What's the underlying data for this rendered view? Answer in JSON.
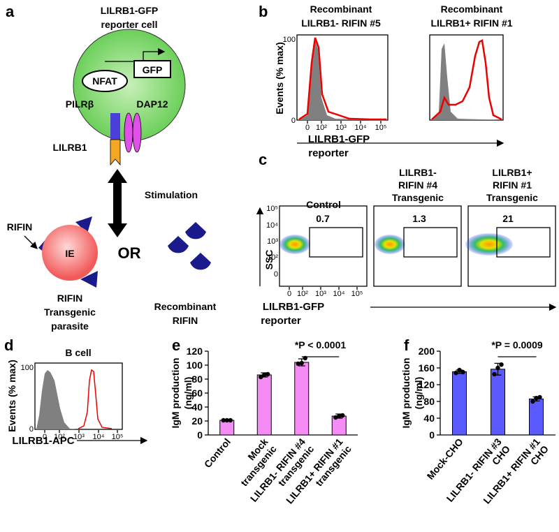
{
  "panel_a": {
    "label": "a",
    "title_lines": [
      "LILRB1-GFP",
      "reporter cell"
    ],
    "gfp": "GFP",
    "nfat": "NFAT",
    "pilrb": "PILRβ",
    "dap12": "DAP12",
    "lilrb1": "LILRB1",
    "stimulation": "Stimulation",
    "rifin": "RIFIN",
    "ie": "IE",
    "or": "OR",
    "transgenic_lines": [
      "RIFIN",
      "Transgenic",
      "parasite"
    ],
    "recombinant_lines": [
      "Recombinant",
      "RIFIN"
    ]
  },
  "panel_b": {
    "label": "b",
    "plots": [
      {
        "title_lines": [
          "Recombinant",
          "LILRB1- RIFIN #5"
        ]
      },
      {
        "title_lines": [
          "Recombinant",
          "LILRB1+ RIFIN #1"
        ]
      }
    ],
    "ylabel": "Events (% max)",
    "yticks": [
      100,
      0
    ],
    "xticks": [
      0,
      "10²",
      "10³",
      "10⁴",
      "10⁵"
    ],
    "xlabel_lines": [
      "LILRB1-GFP",
      "reporter"
    ]
  },
  "panel_c": {
    "label": "c",
    "plots": [
      {
        "title_lines": [
          "Control"
        ],
        "gate": 0.7
      },
      {
        "title_lines": [
          "LILRB1-",
          "RIFIN #4",
          "Transgenic"
        ],
        "gate": 1.3
      },
      {
        "title_lines": [
          "LILRB1+",
          "RIFIN #1",
          "Transgenic"
        ],
        "gate": 21
      }
    ],
    "ylabel": "SSC",
    "yticks": [
      "10⁵",
      "10⁴",
      "10³",
      "10²",
      0
    ],
    "xticks": [
      0,
      "10²",
      "10³",
      "10⁴",
      "10⁵"
    ],
    "xlabel_lines": [
      "LILRB1-GFP",
      "reporter"
    ]
  },
  "panel_d": {
    "label": "d",
    "title": "B cell",
    "ylabel": "Events (% max)",
    "yticks": [
      100,
      0
    ],
    "xticks": [
      0,
      "10²",
      "10³",
      "10⁴",
      "10⁵"
    ],
    "xlabel": "LILRB1-APC"
  },
  "chart_data": [
    {
      "type": "bar",
      "label": "e",
      "ylabel": [
        "IgM production",
        "(ng/ml)"
      ],
      "significance": "*P < 0.0001",
      "categories": [
        [
          "Control"
        ],
        [
          "Mock",
          "transgenic"
        ],
        [
          "LILRB1- RIFIN #4",
          "transgenic"
        ],
        [
          "LILRB1+ RIFIN #1",
          "transgenic"
        ]
      ],
      "values": [
        21,
        86,
        104,
        27
      ],
      "errors": [
        1,
        3,
        5,
        3
      ],
      "points": [
        [
          21,
          21,
          21
        ],
        [
          83,
          86,
          87
        ],
        [
          102,
          103,
          110
        ],
        [
          25,
          27,
          28
        ]
      ],
      "color": "#f58cf5",
      "ylim": [
        0,
        120
      ],
      "yticks": [
        0,
        20,
        40,
        60,
        80,
        100,
        120
      ]
    },
    {
      "type": "bar",
      "label": "f",
      "ylabel": [
        "IgM production",
        "(ng/ml)"
      ],
      "significance": "*P = 0.0009",
      "categories": [
        [
          "Mock-CHO"
        ],
        [
          "LILRB1- RIFIN #3",
          "CHO"
        ],
        [
          "LILRB1+ RIFIN #1",
          "CHO"
        ]
      ],
      "values": [
        151,
        157,
        86
      ],
      "errors": [
        4,
        14,
        5
      ],
      "points": [
        [
          148,
          155,
          150
        ],
        [
          145,
          160,
          168
        ],
        [
          80,
          88,
          90
        ]
      ],
      "color": "#5a5aff",
      "ylim": [
        0,
        200
      ],
      "yticks": [
        0,
        40,
        80,
        120,
        160,
        200
      ]
    }
  ]
}
